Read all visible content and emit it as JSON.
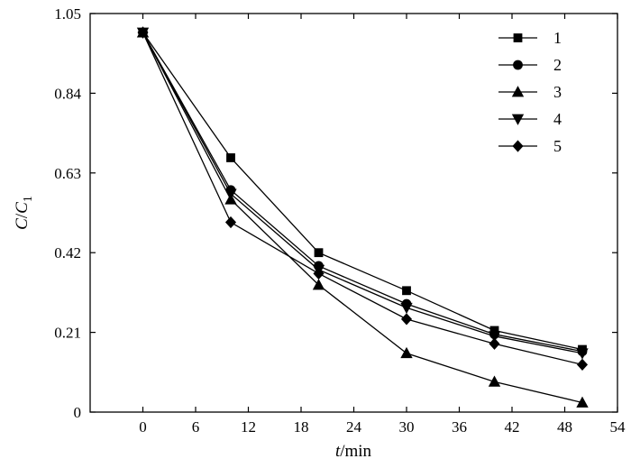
{
  "chart_data": {
    "type": "line",
    "xlabel": {
      "italic": "t",
      "rest": "/min"
    },
    "ylabel": {
      "main": "C",
      "slash": "/",
      "second": "C",
      "sub": "1"
    },
    "xlim": [
      -6,
      54
    ],
    "ylim": [
      0,
      1.05
    ],
    "xticks": [
      0,
      6,
      12,
      18,
      24,
      30,
      36,
      42,
      48,
      54
    ],
    "yticks": [
      0,
      0.21,
      0.42,
      0.63,
      0.84,
      1.05
    ],
    "ytick_labels": [
      "0",
      "0.21",
      "0.42",
      "0.63",
      "0.84",
      "1.05"
    ],
    "x": [
      0,
      10,
      20,
      30,
      40,
      50
    ],
    "legend_position": "top-right",
    "grid": false,
    "series": [
      {
        "name": "1",
        "marker": "square",
        "values": [
          1.0,
          0.67,
          0.42,
          0.32,
          0.215,
          0.165
        ]
      },
      {
        "name": "2",
        "marker": "circle",
        "values": [
          1.0,
          0.585,
          0.385,
          0.285,
          0.205,
          0.16
        ]
      },
      {
        "name": "3",
        "marker": "triangle-up",
        "values": [
          1.0,
          0.56,
          0.335,
          0.155,
          0.08,
          0.025
        ]
      },
      {
        "name": "4",
        "marker": "triangle-down",
        "values": [
          1.0,
          0.575,
          0.375,
          0.275,
          0.2,
          0.155
        ]
      },
      {
        "name": "5",
        "marker": "diamond",
        "values": [
          1.0,
          0.5,
          0.365,
          0.245,
          0.18,
          0.125
        ]
      }
    ]
  }
}
